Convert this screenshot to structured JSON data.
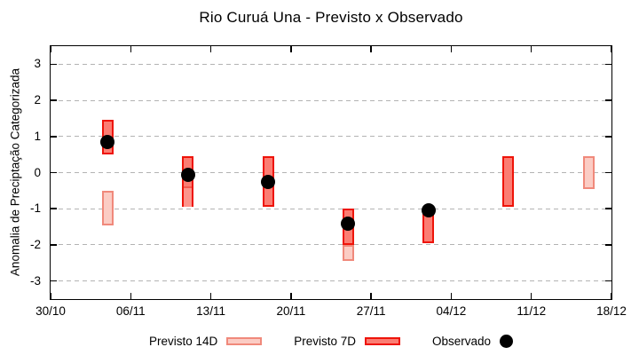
{
  "chart_data": {
    "type": "candlestick-ranges",
    "title": "Rio Curuá Una - Previsto x Observado",
    "ylabel": "Anomalia de Preciptação Categorizada",
    "ylim": [
      -3.5,
      3.5
    ],
    "grid": "horizontal-dashed",
    "x_range_days": 49,
    "x_ticks": [
      {
        "day": 0,
        "label": "30/10"
      },
      {
        "day": 7,
        "label": "06/11"
      },
      {
        "day": 14,
        "label": "13/11"
      },
      {
        "day": 21,
        "label": "20/11"
      },
      {
        "day": 28,
        "label": "27/11"
      },
      {
        "day": 35,
        "label": "04/12"
      },
      {
        "day": 42,
        "label": "11/12"
      },
      {
        "day": 49,
        "label": "18/12"
      }
    ],
    "y_ticks": [
      {
        "value": 3,
        "label": "3"
      },
      {
        "value": 2,
        "label": "2"
      },
      {
        "value": 1,
        "label": "1"
      },
      {
        "value": 0,
        "label": "0"
      },
      {
        "value": -1,
        "label": "-1"
      },
      {
        "value": -2,
        "label": "-2"
      },
      {
        "value": -3,
        "label": "-3"
      }
    ],
    "points": [
      {
        "date": "04/11",
        "day": 5,
        "previsto_7d": [
          0.5,
          1.45
        ],
        "previsto_14d": [
          -1.45,
          -0.5
        ],
        "observado": 0.85
      },
      {
        "date": "11/11",
        "day": 12,
        "previsto_7d": [
          -0.95,
          0.45
        ],
        "previsto_14d": [
          -0.95,
          -0.4
        ],
        "observado": -0.05
      },
      {
        "date": "18/11",
        "day": 19,
        "previsto_7d": [
          -0.95,
          0.45
        ],
        "previsto_14d": null,
        "observado": -0.25
      },
      {
        "date": "25/11",
        "day": 26,
        "previsto_7d": [
          -2.0,
          -1.0
        ],
        "previsto_14d": [
          -2.45,
          -2.0
        ],
        "observado": -1.4
      },
      {
        "date": "02/12",
        "day": 33,
        "previsto_7d": [
          -1.95,
          -1.05
        ],
        "previsto_14d": null,
        "observado": -1.05
      },
      {
        "date": "09/12",
        "day": 40,
        "previsto_7d": [
          -0.95,
          0.45
        ],
        "previsto_14d": null,
        "observado": null
      },
      {
        "date": "16/12",
        "day": 47,
        "previsto_7d": null,
        "previsto_14d": [
          -0.45,
          0.45
        ],
        "observado": null
      }
    ],
    "legend": [
      {
        "label": "Previsto 14D",
        "swatch": "14d"
      },
      {
        "label": "Previsto 7D",
        "swatch": "7d"
      },
      {
        "label": "Observado",
        "swatch": "dot"
      }
    ],
    "colors": {
      "previsto_14d_fill": "#fbccc4",
      "previsto_14d_border": "#f0897b",
      "previsto_7d_fill": "#fb7d73",
      "previsto_7d_border": "#ee1409",
      "overlap_fill": "#fc958c",
      "overlap_divider": "#f05a4f",
      "observado": "#000000",
      "grid": "#b3b3b3",
      "axis": "#000000"
    }
  }
}
